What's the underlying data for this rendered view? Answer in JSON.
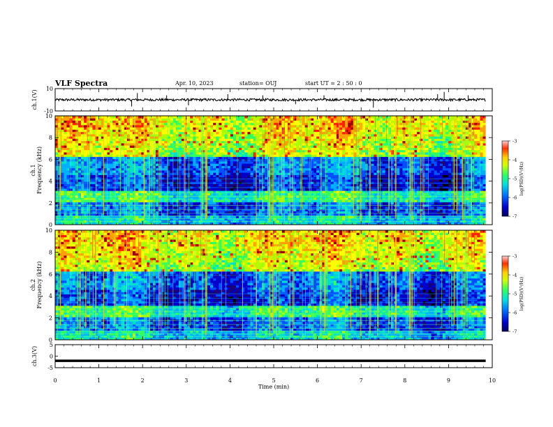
{
  "header": {
    "title": "VLF Spectra",
    "date": "Apr. 10, 2023",
    "station": "station= OUJ",
    "start": "start  UT =   2 : 50 : 0"
  },
  "colors": {
    "colormap": [
      "#000000",
      "#1a007a",
      "#0000cc",
      "#0050ff",
      "#00b0ff",
      "#00e0d0",
      "#30ff60",
      "#b0ff00",
      "#ffff00",
      "#ffa000",
      "#ff2000",
      "#a00000"
    ],
    "trace": "#000000",
    "frame": "#000000"
  },
  "chart_data": [
    {
      "type": "line",
      "panel": "ch1-waveform",
      "ylabel": "ch.1(V)",
      "ytick_labels": [
        "10",
        "-10"
      ],
      "ylim": [
        -10,
        10
      ],
      "xlim": [
        0,
        10
      ],
      "grid": false,
      "series": [
        {
          "x": [
            0,
            9.85
          ],
          "y": [
            0,
            0
          ]
        }
      ],
      "spikes": [
        {
          "x": 1.88,
          "y": 6
        },
        {
          "x": 1.75,
          "y": -6
        },
        {
          "x": 2.55,
          "y": 4
        },
        {
          "x": 3.05,
          "y": -5
        },
        {
          "x": 3.95,
          "y": 5
        },
        {
          "x": 4.75,
          "y": 4
        },
        {
          "x": 5.5,
          "y": -4
        },
        {
          "x": 6.15,
          "y": 4
        },
        {
          "x": 7.28,
          "y": -7
        },
        {
          "x": 8.75,
          "y": 5
        },
        {
          "x": 8.9,
          "y": 7
        },
        {
          "x": 9.45,
          "y": 4
        }
      ]
    },
    {
      "type": "heatmap",
      "panel": "ch1-spectrogram",
      "ylabel_channel": "ch.1",
      "ylabel": "Frequency (kHz)",
      "yticks": [
        0,
        2,
        4,
        6,
        8,
        10
      ],
      "ylim": [
        0,
        10
      ],
      "xlim": [
        0,
        10
      ],
      "colorbar": {
        "label": "log(PSD)(V²/Hz)",
        "ticks": [
          -3,
          -4,
          -5,
          -6,
          -7
        ],
        "range": [
          -7,
          -3
        ]
      }
    },
    {
      "type": "heatmap",
      "panel": "ch2-spectrogram",
      "ylabel_channel": "ch.2",
      "ylabel": "Frequency (kHz)",
      "yticks": [
        0,
        2,
        4,
        6,
        8,
        10
      ],
      "ylim": [
        0,
        10
      ],
      "xlim": [
        0,
        10
      ],
      "colorbar": {
        "label": "log(PSD)(V²/Hz)",
        "ticks": [
          -3,
          -4,
          -5,
          -6,
          -7
        ],
        "range": [
          -7,
          -3
        ]
      }
    },
    {
      "type": "line",
      "panel": "ch3-waveform",
      "ylabel": "ch.3(V)",
      "ytick_labels": [
        "5",
        "0",
        "-5"
      ],
      "ylim": [
        -5,
        5
      ],
      "xlim": [
        0,
        10
      ],
      "series": [
        {
          "x": [
            0,
            9.85
          ],
          "y": [
            -2,
            -2
          ]
        }
      ],
      "xlabel": "Time (min)",
      "xticks": [
        0,
        1,
        2,
        3,
        4,
        5,
        6,
        7,
        8,
        9,
        10
      ]
    }
  ]
}
